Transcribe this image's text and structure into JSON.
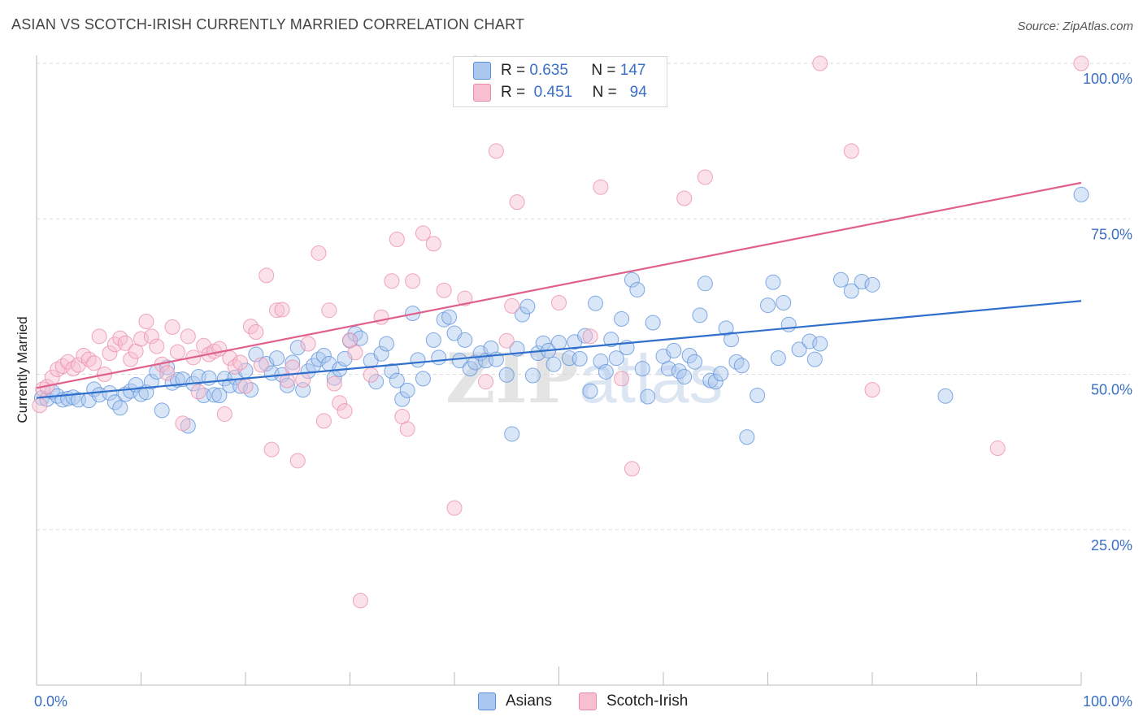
{
  "title": "ASIAN VS SCOTCH-IRISH CURRENTLY MARRIED CORRELATION CHART",
  "source": "Source: ZipAtlas.com",
  "watermark": {
    "a": "ZIP",
    "b": "atlas"
  },
  "legend": {
    "r_label": "R =",
    "n_label": "N =",
    "series": [
      {
        "r": "0.635",
        "n": "147"
      },
      {
        "r": "0.451",
        "n": "94"
      }
    ]
  },
  "colors": {
    "asians_fill": "#aac8f0",
    "asians_stroke": "#5a8fd8",
    "asians_line": "#2f6fcc",
    "scotch_fill": "#f7bfd0",
    "scotch_stroke": "#e98aa8",
    "scotch_line": "#e0608c",
    "tick_text": "#3a6fc4",
    "grid": "#d9d9d9"
  },
  "chart_data": {
    "type": "scatter",
    "title": "ASIAN VS SCOTCH-IRISH CURRENTLY MARRIED CORRELATION CHART",
    "xlabel": "",
    "ylabel": "Currently Married",
    "xlim": [
      0,
      100
    ],
    "ylim": [
      0,
      100
    ],
    "x_tick_labels": [
      "0.0%",
      "100.0%"
    ],
    "y_ticks": [
      25,
      50,
      75,
      100
    ],
    "y_tick_labels": [
      "25.0%",
      "50.0%",
      "75.0%",
      "100.0%"
    ],
    "grid": true,
    "legend_position": "top-center",
    "series": [
      {
        "name": "Asians",
        "trend": {
          "x": [
            0,
            100
          ],
          "y": [
            46.2,
            61.8
          ]
        },
        "points": [
          [
            0.5,
            46.2
          ],
          [
            1.0,
            46.0
          ],
          [
            1.5,
            47.2
          ],
          [
            2.0,
            46.5
          ],
          [
            2.5,
            45.9
          ],
          [
            3.0,
            46.1
          ],
          [
            3.5,
            46.3
          ],
          [
            4.0,
            45.9
          ],
          [
            5.0,
            45.8
          ],
          [
            5.5,
            47.6
          ],
          [
            6.0,
            46.7
          ],
          [
            7.0,
            47.0
          ],
          [
            7.5,
            45.5
          ],
          [
            8.0,
            44.6
          ],
          [
            8.5,
            46.8
          ],
          [
            9.0,
            47.3
          ],
          [
            9.5,
            48.3
          ],
          [
            10.0,
            46.8
          ],
          [
            10.5,
            47.1
          ],
          [
            11.0,
            48.8
          ],
          [
            11.5,
            50.4
          ],
          [
            12.0,
            44.2
          ],
          [
            12.5,
            51.1
          ],
          [
            13.0,
            48.6
          ],
          [
            13.5,
            49.1
          ],
          [
            14.0,
            49.2
          ],
          [
            14.5,
            41.7
          ],
          [
            15.0,
            48.5
          ],
          [
            15.5,
            49.6
          ],
          [
            16.0,
            46.6
          ],
          [
            16.5,
            49.4
          ],
          [
            17.0,
            46.7
          ],
          [
            17.5,
            46.6
          ],
          [
            18.0,
            49.3
          ],
          [
            18.5,
            48.2
          ],
          [
            19.0,
            49.5
          ],
          [
            19.5,
            48.1
          ],
          [
            20.0,
            50.6
          ],
          [
            20.5,
            47.5
          ],
          [
            21.0,
            53.2
          ],
          [
            22.0,
            51.7
          ],
          [
            22.5,
            50.2
          ],
          [
            23.0,
            52.6
          ],
          [
            23.5,
            49.9
          ],
          [
            24.0,
            48.2
          ],
          [
            24.5,
            51.9
          ],
          [
            25.0,
            54.3
          ],
          [
            25.5,
            47.5
          ],
          [
            26.0,
            50.5
          ],
          [
            26.5,
            51.4
          ],
          [
            27.0,
            52.4
          ],
          [
            27.5,
            53.0
          ],
          [
            28.0,
            51.7
          ],
          [
            28.5,
            49.4
          ],
          [
            29.0,
            50.8
          ],
          [
            29.5,
            52.5
          ],
          [
            30.0,
            55.4
          ],
          [
            30.5,
            56.5
          ],
          [
            31.0,
            55.8
          ],
          [
            32.0,
            52.2
          ],
          [
            32.5,
            48.8
          ],
          [
            33.0,
            53.3
          ],
          [
            33.5,
            54.9
          ],
          [
            34.0,
            50.5
          ],
          [
            34.5,
            49.0
          ],
          [
            35.0,
            46.0
          ],
          [
            35.5,
            47.4
          ],
          [
            36.0,
            59.8
          ],
          [
            36.5,
            52.3
          ],
          [
            37.0,
            49.3
          ],
          [
            38.0,
            55.5
          ],
          [
            38.5,
            52.7
          ],
          [
            39.0,
            58.8
          ],
          [
            39.5,
            59.2
          ],
          [
            40.0,
            56.6
          ],
          [
            40.5,
            52.2
          ],
          [
            41.0,
            55.5
          ],
          [
            41.5,
            50.9
          ],
          [
            42.0,
            51.9
          ],
          [
            42.5,
            53.4
          ],
          [
            43.0,
            52.2
          ],
          [
            43.5,
            54.2
          ],
          [
            44.0,
            52.4
          ],
          [
            45.0,
            49.9
          ],
          [
            45.5,
            40.4
          ],
          [
            46.0,
            54.1
          ],
          [
            46.5,
            59.6
          ],
          [
            47.0,
            60.9
          ],
          [
            47.5,
            49.8
          ],
          [
            48.0,
            53.4
          ],
          [
            48.5,
            55.0
          ],
          [
            49.0,
            53.8
          ],
          [
            49.5,
            51.6
          ],
          [
            50.0,
            55.1
          ],
          [
            51.0,
            52.6
          ],
          [
            51.5,
            55.2
          ],
          [
            52.0,
            52.5
          ],
          [
            52.5,
            56.2
          ],
          [
            53.0,
            47.3
          ],
          [
            53.5,
            61.4
          ],
          [
            54.0,
            52.1
          ],
          [
            54.5,
            50.4
          ],
          [
            55.0,
            55.6
          ],
          [
            55.5,
            52.6
          ],
          [
            56.0,
            58.9
          ],
          [
            56.5,
            54.3
          ],
          [
            57.0,
            65.2
          ],
          [
            57.5,
            63.6
          ],
          [
            58.0,
            50.9
          ],
          [
            58.5,
            46.4
          ],
          [
            59.0,
            58.3
          ],
          [
            60.0,
            52.9
          ],
          [
            60.5,
            50.9
          ],
          [
            61.0,
            53.8
          ],
          [
            61.5,
            50.5
          ],
          [
            62.0,
            49.6
          ],
          [
            62.5,
            53.0
          ],
          [
            63.0,
            52.0
          ],
          [
            63.5,
            59.5
          ],
          [
            64.0,
            64.6
          ],
          [
            64.5,
            49.0
          ],
          [
            65.0,
            48.8
          ],
          [
            65.5,
            50.1
          ],
          [
            66.0,
            57.4
          ],
          [
            66.5,
            55.6
          ],
          [
            67.0,
            52.0
          ],
          [
            67.5,
            51.4
          ],
          [
            68.0,
            39.9
          ],
          [
            69.0,
            46.6
          ],
          [
            70.0,
            61.1
          ],
          [
            70.5,
            64.8
          ],
          [
            71.0,
            52.6
          ],
          [
            71.5,
            61.5
          ],
          [
            72.0,
            58.0
          ],
          [
            73.0,
            54.0
          ],
          [
            74.0,
            55.3
          ],
          [
            74.5,
            52.4
          ],
          [
            75.0,
            54.9
          ],
          [
            77.0,
            65.2
          ],
          [
            78.0,
            63.4
          ],
          [
            79.0,
            64.9
          ],
          [
            80.0,
            64.4
          ],
          [
            87.0,
            46.5
          ],
          [
            100.0,
            78.9
          ]
        ]
      },
      {
        "name": "Scotch-Irish",
        "trend": {
          "x": [
            0,
            100
          ],
          "y": [
            47.8,
            80.8
          ]
        },
        "points": [
          [
            0.3,
            45.0
          ],
          [
            0.6,
            47.6
          ],
          [
            1.0,
            48.0
          ],
          [
            1.5,
            49.5
          ],
          [
            2.0,
            50.8
          ],
          [
            2.5,
            51.3
          ],
          [
            3.0,
            52.0
          ],
          [
            3.5,
            50.9
          ],
          [
            4.0,
            51.5
          ],
          [
            4.5,
            53.0
          ],
          [
            5.0,
            52.4
          ],
          [
            5.5,
            51.8
          ],
          [
            6.0,
            56.1
          ],
          [
            6.5,
            50.0
          ],
          [
            7.0,
            53.4
          ],
          [
            7.5,
            54.8
          ],
          [
            8.0,
            55.8
          ],
          [
            8.5,
            55.0
          ],
          [
            9.0,
            52.4
          ],
          [
            9.5,
            53.7
          ],
          [
            10.0,
            55.7
          ],
          [
            10.5,
            58.5
          ],
          [
            11.0,
            56.1
          ],
          [
            11.5,
            54.5
          ],
          [
            12.0,
            51.6
          ],
          [
            12.5,
            50.2
          ],
          [
            13.0,
            57.6
          ],
          [
            13.5,
            53.6
          ],
          [
            14.0,
            42.1
          ],
          [
            14.5,
            56.1
          ],
          [
            15.0,
            52.7
          ],
          [
            15.5,
            47.2
          ],
          [
            16.0,
            54.6
          ],
          [
            16.5,
            53.2
          ],
          [
            17.0,
            53.7
          ],
          [
            17.5,
            54.1
          ],
          [
            18.0,
            43.6
          ],
          [
            18.5,
            52.6
          ],
          [
            19.0,
            51.2
          ],
          [
            19.5,
            51.9
          ],
          [
            20.0,
            48.1
          ],
          [
            20.5,
            57.7
          ],
          [
            21.0,
            56.8
          ],
          [
            21.5,
            51.5
          ],
          [
            22.0,
            65.9
          ],
          [
            22.5,
            37.9
          ],
          [
            23.0,
            60.3
          ],
          [
            23.5,
            60.4
          ],
          [
            24.0,
            49.0
          ],
          [
            24.5,
            51.1
          ],
          [
            25.0,
            36.1
          ],
          [
            25.5,
            49.1
          ],
          [
            26.0,
            54.9
          ],
          [
            27.0,
            69.5
          ],
          [
            27.5,
            42.5
          ],
          [
            28.0,
            60.3
          ],
          [
            28.5,
            48.5
          ],
          [
            29.0,
            45.4
          ],
          [
            29.5,
            44.1
          ],
          [
            30.0,
            55.5
          ],
          [
            30.5,
            53.5
          ],
          [
            31.0,
            13.6
          ],
          [
            32.0,
            49.9
          ],
          [
            33.0,
            59.2
          ],
          [
            34.0,
            65.0
          ],
          [
            34.5,
            71.7
          ],
          [
            35.0,
            43.2
          ],
          [
            35.5,
            41.2
          ],
          [
            36.0,
            65.0
          ],
          [
            37.0,
            72.7
          ],
          [
            38.0,
            71.0
          ],
          [
            39.0,
            63.5
          ],
          [
            40.0,
            28.5
          ],
          [
            41.0,
            62.2
          ],
          [
            42.0,
            100.0
          ],
          [
            43.0,
            48.8
          ],
          [
            44.0,
            85.9
          ],
          [
            45.0,
            55.4
          ],
          [
            45.5,
            61.0
          ],
          [
            46.0,
            77.7
          ],
          [
            50.0,
            61.5
          ],
          [
            53.0,
            56.1
          ],
          [
            54.0,
            80.1
          ],
          [
            56.0,
            49.3
          ],
          [
            57.0,
            34.8
          ],
          [
            62.0,
            78.3
          ],
          [
            64.0,
            81.7
          ],
          [
            75.0,
            100.0
          ],
          [
            78.0,
            85.9
          ],
          [
            80.0,
            47.5
          ],
          [
            92.0,
            38.1
          ],
          [
            100.0,
            100.0
          ]
        ]
      }
    ]
  }
}
